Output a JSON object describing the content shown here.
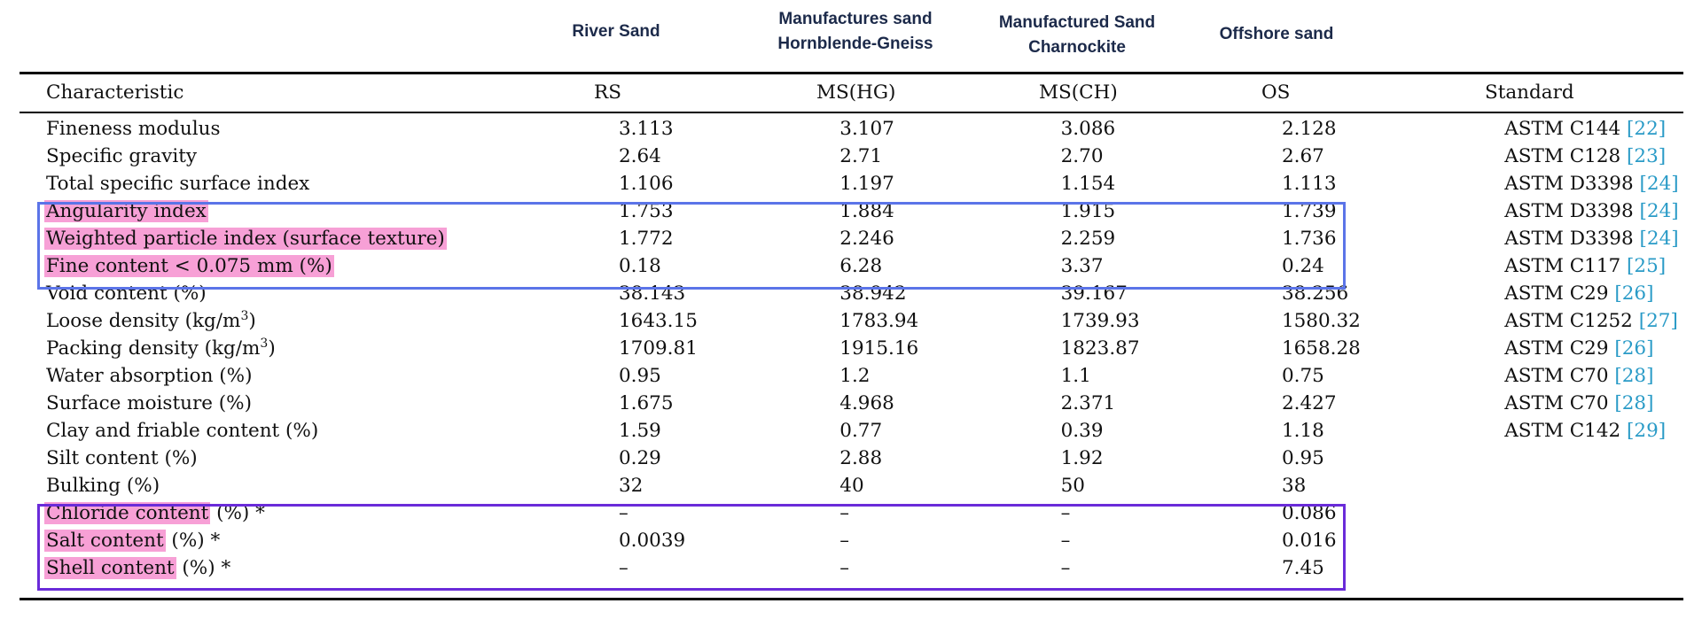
{
  "group_headers": [
    {
      "line1": "River Sand",
      "line2": ""
    },
    {
      "line1": "Manufactures sand",
      "line2": "Hornblende-Gneiss"
    },
    {
      "line1": "Manufactured Sand",
      "line2": "Charnockite"
    },
    {
      "line1": "Offshore sand",
      "line2": ""
    }
  ],
  "columns": [
    "Characteristic",
    "RS",
    "MS(HG)",
    "MS(CH)",
    "OS",
    "Standard"
  ],
  "rows": [
    {
      "name": "Fineness modulus",
      "hl": "",
      "rest": "Fineness modulus",
      "rs": "3.113",
      "mshg": "3.107",
      "msch": "3.086",
      "os": "2.128",
      "std": "ASTM C144",
      "ref": "[22]"
    },
    {
      "name": "Specific gravity",
      "hl": "",
      "rest": "Specific gravity",
      "rs": "2.64",
      "mshg": "2.71",
      "msch": "2.70",
      "os": "2.67",
      "std": "ASTM C128",
      "ref": "[23]"
    },
    {
      "name": "Total specific surface index",
      "hl": "",
      "rest": "Total specific surface index",
      "rs": "1.106",
      "mshg": "1.197",
      "msch": "1.154",
      "os": "1.113",
      "std": "ASTM D3398",
      "ref": "[24]"
    },
    {
      "name": "Angularity index",
      "hl": "Angularity index",
      "rest": "",
      "rs": "1.753",
      "mshg": "1.884",
      "msch": "1.915",
      "os": "1.739",
      "std": "ASTM D3398",
      "ref": "[24]"
    },
    {
      "name": "Weighted particle index (surface texture)",
      "hl": "Weighted particle index (surface texture)",
      "rest": "",
      "rs": "1.772",
      "mshg": "2.246",
      "msch": "2.259",
      "os": "1.736",
      "std": "ASTM D3398",
      "ref": "[24]"
    },
    {
      "name": "Fine content < 0.075 mm (%)",
      "hl": "Fine content < 0.075 mm (%)",
      "rest": "",
      "rs": "0.18",
      "mshg": "6.28",
      "msch": "3.37",
      "os": "0.24",
      "std": "ASTM C117",
      "ref": "[25]"
    },
    {
      "name": "Void content (%)",
      "hl": "",
      "rest": "Void content (%)",
      "rs": "38.143",
      "mshg": "38.942",
      "msch": "39.167",
      "os": "38.256",
      "std": "ASTM C29",
      "ref": "[26]"
    },
    {
      "name": "Loose density (kg/m3)",
      "hl": "",
      "rest": "Loose density (kg/m",
      "sup": "3",
      "tail": ")",
      "rs": "1643.15",
      "mshg": "1783.94",
      "msch": "1739.93",
      "os": "1580.32",
      "std": "ASTM C1252",
      "ref": "[27]"
    },
    {
      "name": "Packing density (kg/m3)",
      "hl": "",
      "rest": "Packing density (kg/m",
      "sup": "3",
      "tail": ")",
      "rs": "1709.81",
      "mshg": "1915.16",
      "msch": "1823.87",
      "os": "1658.28",
      "std": "ASTM C29",
      "ref": "[26]"
    },
    {
      "name": "Water absorption (%)",
      "hl": "",
      "rest": "Water absorption (%)",
      "rs": "0.95",
      "mshg": "1.2",
      "msch": "1.1",
      "os": "0.75",
      "std": "ASTM C70",
      "ref": "[28]"
    },
    {
      "name": "Surface moisture (%)",
      "hl": "",
      "rest": "Surface moisture (%)",
      "rs": "1.675",
      "mshg": "4.968",
      "msch": "2.371",
      "os": "2.427",
      "std": "ASTM C70",
      "ref": "[28]"
    },
    {
      "name": "Clay and friable content (%)",
      "hl": "",
      "rest": "Clay and friable content (%)",
      "rs": "1.59",
      "mshg": "0.77",
      "msch": "0.39",
      "os": "1.18",
      "std": "ASTM C142",
      "ref": "[29]"
    },
    {
      "name": "Silt content (%)",
      "hl": "",
      "rest": "Silt content (%)",
      "rs": "0.29",
      "mshg": "2.88",
      "msch": "1.92",
      "os": "0.95",
      "std": "",
      "ref": ""
    },
    {
      "name": "Bulking (%)",
      "hl": "",
      "rest": "Bulking (%)",
      "rs": "32",
      "mshg": "40",
      "msch": "50",
      "os": "38",
      "std": "",
      "ref": ""
    },
    {
      "name": "Chloride content (%) *",
      "hl": "Chloride content",
      "rest": " (%) *",
      "rs": "–",
      "mshg": "–",
      "msch": "–",
      "os": "0.086",
      "std": "",
      "ref": ""
    },
    {
      "name": "Salt content (%) *",
      "hl": "Salt content",
      "rest": " (%) *",
      "rs": "0.0039",
      "mshg": "–",
      "msch": "–",
      "os": "0.016",
      "std": "",
      "ref": ""
    },
    {
      "name": "Shell content (%) *",
      "hl": "Shell content",
      "rest": " (%) *",
      "rs": "–",
      "mshg": "–",
      "msch": "–",
      "os": "7.45",
      "std": "",
      "ref": ""
    }
  ],
  "colors": {
    "highlight": "#f7a0d6",
    "box_blue": "#5b74e8",
    "box_purple": "#6a2bd9",
    "reference": "#2a9bc7",
    "group_header": "#1c2a4a"
  }
}
